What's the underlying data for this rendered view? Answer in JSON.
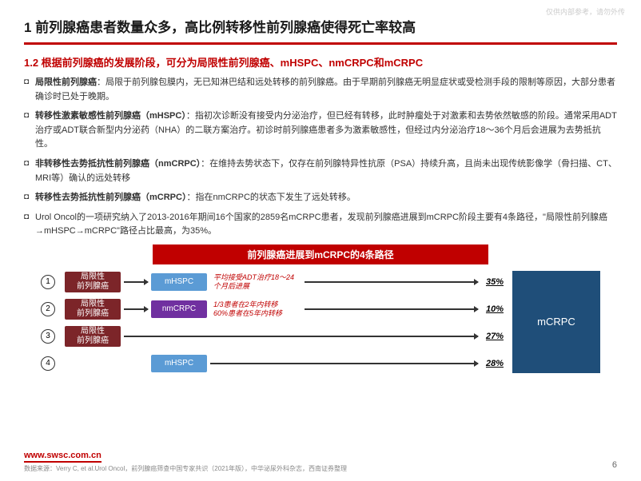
{
  "watermark": "仅供内部参考，请勿外传",
  "title": "1 前列腺癌患者数量众多，高比例转移性前列腺癌使得死亡率较高",
  "subtitle": "1.2 根据前列腺癌的发展阶段，可分为局限性前列腺癌、mHSPC、nmCRPC和mCRPC",
  "bullets": [
    {
      "bold": "局限性前列腺癌",
      "text": "：局限于前列腺包膜内，无已知淋巴结和远处转移的前列腺癌。由于早期前列腺癌无明显症状或受检测手段的限制等原因，大部分患者确诊时已处于晚期。"
    },
    {
      "bold": "转移性激素敏感性前列腺癌（mHSPC）",
      "text": "：指初次诊断没有接受内分泌治疗，但已经有转移，此时肿瘤处于对激素和去势依然敏感的阶段。通常采用ADT治疗或ADT联合新型内分泌药（NHA）的二联方案治疗。初诊时前列腺癌患者多为激素敏感性，但经过内分泌治疗18～36个月后会进展为去势抵抗性。"
    },
    {
      "bold": "非转移性去势抵抗性前列腺癌（nmCRPC）",
      "text": "：在维持去势状态下，仅存在前列腺特异性抗原（PSA）持续升高，且尚未出现传统影像学（骨扫描、CT、MRI等）确认的远处转移"
    },
    {
      "bold": "转移性去势抵抗性前列腺癌（mCRPC）",
      "text": "：指在nmCRPC的状态下发生了远处转移。"
    },
    {
      "bold": "",
      "text": "Urol Oncol的一项研究纳入了2013-2016年期间16个国家的2859名mCRPC患者，发现前列腺癌进展到mCRPC阶段主要有4条路径，\"局限性前列腺癌→mHSPC→mCRPC\"路径占比最高，为35%。"
    }
  ],
  "diagram": {
    "title": "前列腺癌进展到mCRPC的4条路径",
    "localized": "局限性\n前列腺癌",
    "mhspc": "mHSPC",
    "nmcrpc": "nmCRPC",
    "mcrpc": "mCRPC",
    "note1": "平均接受ADT治疗18～24个月后进展",
    "note2": "1/3患者在2年内转移\n60%患者在5年内转移",
    "pct": [
      "35%",
      "10%",
      "27%",
      "28%"
    ],
    "colors": {
      "red": "#7c2529",
      "blue": "#5b9bd5",
      "purple": "#7030a0",
      "dark": "#1f4e79",
      "title": "#c00000"
    }
  },
  "footer": {
    "url": "www.swsc.com.cn",
    "source": "数据来源：Verry C, et al.Urol Oncol，前列腺癌筛查中国专家共识（2021年版），中华泌尿外科杂志，西南证券整理",
    "page": "6"
  }
}
